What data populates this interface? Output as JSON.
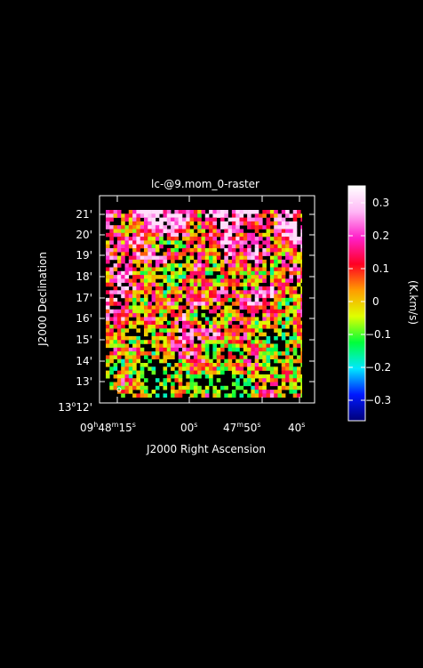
{
  "title": "lc-@9.mom_0-raster",
  "xlabel": "J2000 Right Ascension",
  "ylabel": "J2000 Declination",
  "colorbar": {
    "label": "(K.km/s)",
    "ticks": [
      "0.3",
      "0.2",
      "0.1",
      "0",
      "−0.1",
      "−0.2",
      "−0.3"
    ],
    "range": [
      -0.37,
      0.35
    ],
    "stops": [
      "#00007a",
      "#0018ff",
      "#00e8ff",
      "#00ff3a",
      "#dfff00",
      "#ff9c00",
      "#ff0024",
      "#ff1fc8",
      "#ffb6f6",
      "#ffffff"
    ]
  },
  "ra_ticks": {
    "t0": {
      "h": "09",
      "hs": "h",
      "m": "48",
      "ms": "m",
      "s": "15",
      "ss": "s"
    },
    "t1": {
      "s": "00",
      "ss": "s"
    },
    "t2": {
      "m": "47",
      "ms": "m",
      "s": "50",
      "ss": "s"
    },
    "t3": {
      "s": "40",
      "ss": "s"
    }
  },
  "dec_ticks": {
    "d21": "21'",
    "d20": "20'",
    "d19": "19'",
    "d18": "18'",
    "d17": "17'",
    "d16": "16'",
    "d15": "15'",
    "d14": "14'",
    "d13": "13'",
    "d12": {
      "deg": "13",
      "degsym": "o",
      "min": "12'"
    }
  }
}
